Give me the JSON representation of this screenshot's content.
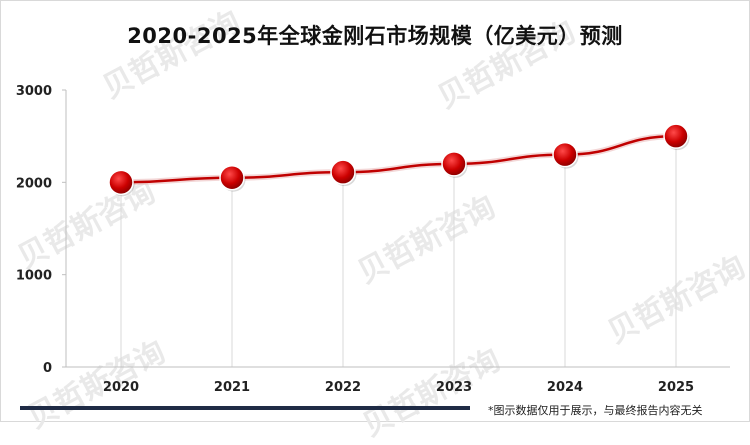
{
  "watermark_text": "贝哲斯咨询",
  "footnote": "*图示数据仅用于展示，与最终报告内容无关",
  "colors": {
    "line": "#c00000",
    "marker": "#cc0000",
    "gridline": "#d9d9d9",
    "axis": "#bfbfbf",
    "footer_bar": "#1f2b45"
  },
  "chart_data": {
    "type": "line",
    "title": "2020-2025年全球金刚石市场规模（亿美元）预测",
    "xlabel": "",
    "ylabel": "",
    "categories": [
      "2020",
      "2021",
      "2022",
      "2023",
      "2024",
      "2025"
    ],
    "series": [
      {
        "values": [
          2000,
          2050,
          2110,
          2200,
          2300,
          2500
        ]
      }
    ],
    "ylim": [
      0,
      3000
    ],
    "yticks": [
      "0",
      "1000",
      "2000",
      "3000"
    ],
    "grid": false,
    "legend": "none"
  }
}
